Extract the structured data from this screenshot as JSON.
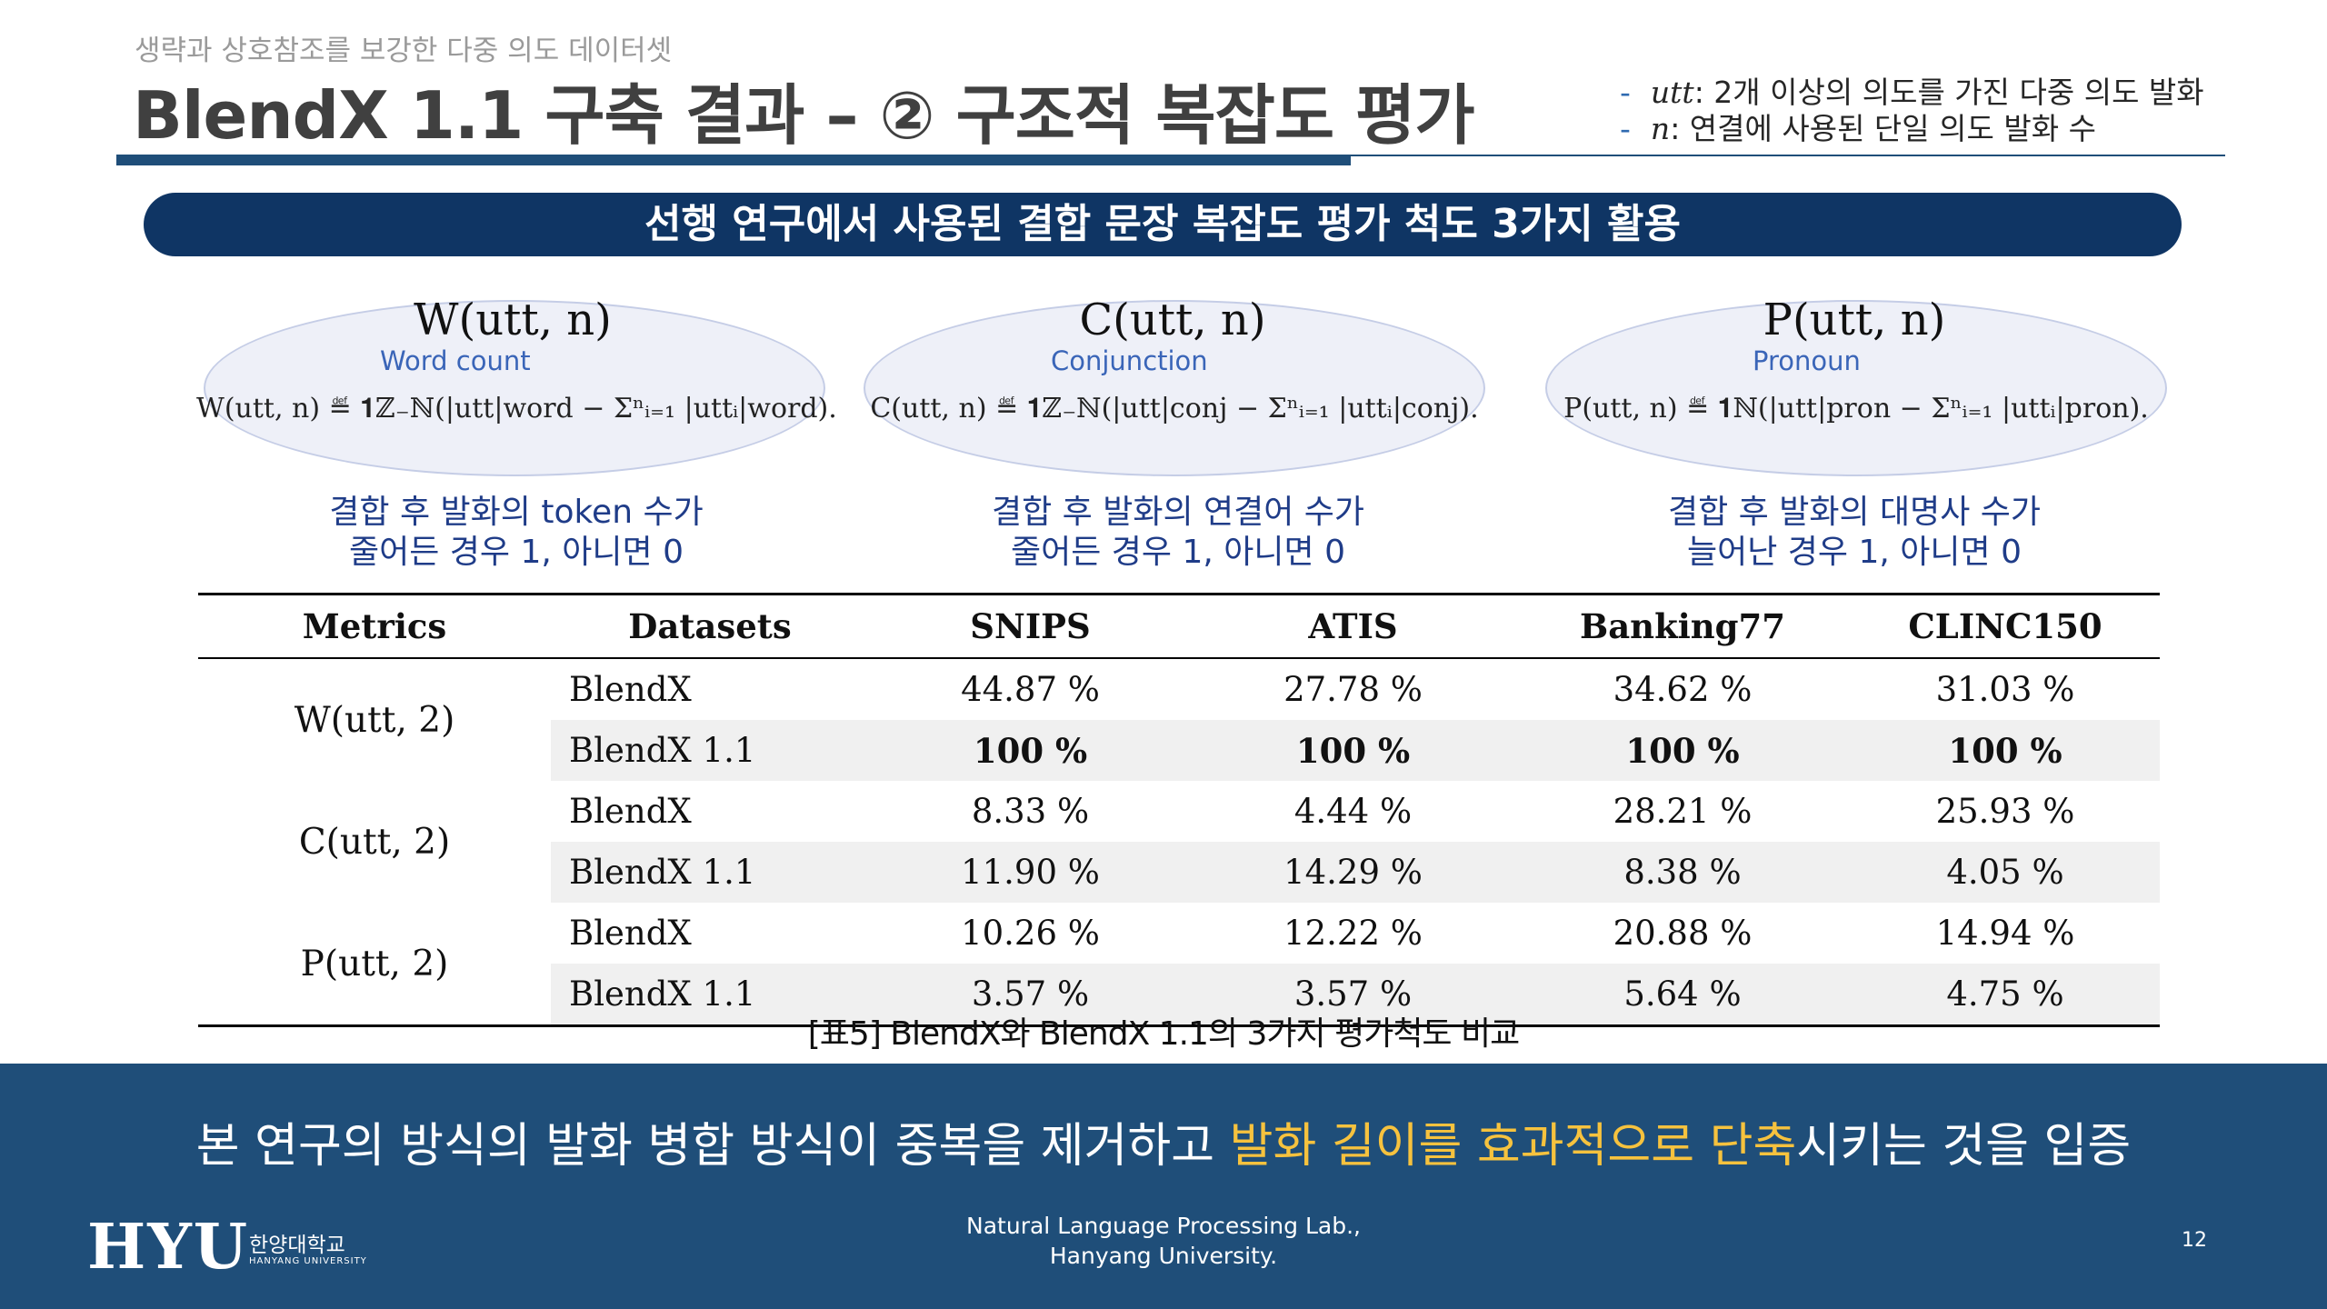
{
  "header": {
    "subtitle": "생략과 상호참조를 보강한 다중 의도 데이터셋",
    "title": "BlendX 1.1 구축 결과 – ② 구조적 복잡도 평가",
    "notes": [
      {
        "var": "utt",
        "text": ": 2개 이상의 의도를 가진 다중 의도 발화"
      },
      {
        "var": "n",
        "text": ": 연결에 사용된 단일 의도 발화 수"
      }
    ]
  },
  "banner": "선행 연구에서 사용된 결합 문장 복잡도 평가 척도 3가지 활용",
  "metrics": [
    {
      "name": "W(utt, n)",
      "sub": "Word count",
      "formula": "W(utt, n) ≝ 𝟏ℤ₋ℕ(|utt|word − Σⁿᵢ₌₁ |uttᵢ|word).",
      "desc1": "결합 후 발화의 token 수가",
      "desc2": "줄어든 경우 1, 아니면 0"
    },
    {
      "name": "C(utt, n)",
      "sub": "Conjunction",
      "formula": "C(utt, n) ≝ 𝟏ℤ₋ℕ(|utt|conj − Σⁿᵢ₌₁ |uttᵢ|conj).",
      "desc1": "결합 후 발화의 연결어 수가",
      "desc2": "줄어든 경우 1, 아니면 0"
    },
    {
      "name": "P(utt, n)",
      "sub": "Pronoun",
      "formula": "P(utt, n) ≝ 𝟏ℕ(|utt|pron − Σⁿᵢ₌₁ |uttᵢ|pron).",
      "desc1": "결합 후 발화의 대명사 수가",
      "desc2": "늘어난 경우 1, 아니면 0"
    }
  ],
  "table": {
    "headers": [
      "Metrics",
      "Datasets",
      "SNIPS",
      "ATIS",
      "Banking77",
      "CLINC150"
    ],
    "rows": [
      {
        "metric": "W(utt, 2)",
        "dataset": "BlendX",
        "values": [
          "44.87 %",
          "27.78 %",
          "34.62 %",
          "31.03 %"
        ]
      },
      {
        "dataset": "BlendX 1.1",
        "values": [
          "100 %",
          "100 %",
          "100 %",
          "100 %"
        ]
      },
      {
        "metric": "C(utt, 2)",
        "dataset": "BlendX",
        "values": [
          "8.33 %",
          "4.44 %",
          "28.21 %",
          "25.93 %"
        ]
      },
      {
        "dataset": "BlendX 1.1",
        "values": [
          "11.90 %",
          "14.29 %",
          "8.38 %",
          "4.05 %"
        ]
      },
      {
        "metric": "P(utt, 2)",
        "dataset": "BlendX",
        "values": [
          "10.26 %",
          "12.22 %",
          "20.88 %",
          "14.94 %"
        ]
      },
      {
        "dataset": "BlendX 1.1",
        "values": [
          "3.57 %",
          "3.57 %",
          "5.64 %",
          "4.75 %"
        ]
      }
    ],
    "caption": "[표5] BlendX와 BlendX 1.1의 3가지 평가척도 비교"
  },
  "footer": {
    "conclusion_pre": "본 연구의 방식의 발화 병합 방식이 중복을 제거하고 ",
    "conclusion_highlight": "발화 길이를 효과적으로 단축",
    "conclusion_post": "시키는 것을 입증",
    "logo_text": "HYU",
    "logo_kor": "한양대학교",
    "logo_eng": "HANYANG UNIVERSITY",
    "lab_line1": "Natural Language Processing Lab.,",
    "lab_line2": "Hanyang University.",
    "page": "12"
  },
  "colors": {
    "brand_navy": "#1f4e79",
    "banner_navy": "#0f3564",
    "highlight": "#f6c23e",
    "accent_blue": "#3a65b8"
  }
}
